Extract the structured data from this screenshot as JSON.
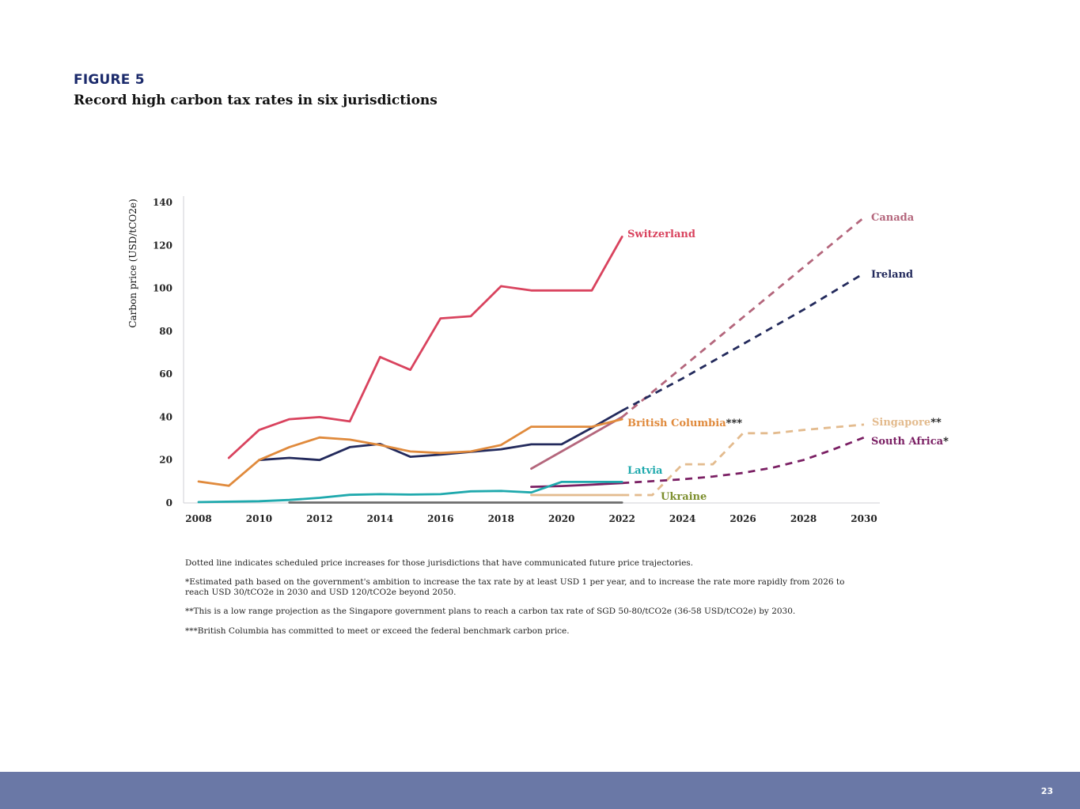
{
  "figure": {
    "label": "FIGURE 5",
    "title": "Record high carbon tax rates in six jurisdictions"
  },
  "chart_data": {
    "type": "line",
    "ylabel": "Carbon price (USD/tCO2e)",
    "xlabel": "",
    "xlim": [
      2008,
      2030
    ],
    "ylim": [
      0,
      140
    ],
    "x_ticks": [
      "2008",
      "2010",
      "2012",
      "2014",
      "2016",
      "2018",
      "2020",
      "2022",
      "2024",
      "2026",
      "2028",
      "2030"
    ],
    "y_ticks": [
      "0",
      "20",
      "40",
      "60",
      "80",
      "100",
      "120",
      "140"
    ],
    "grid": false,
    "series": [
      {
        "name": "Switzerland",
        "color": "#d9435e",
        "label_main": "Switzerland",
        "label_suffix": "",
        "solid": [
          [
            2009,
            21
          ],
          [
            2010,
            34
          ],
          [
            2011,
            39
          ],
          [
            2012,
            40
          ],
          [
            2013,
            38
          ],
          [
            2014,
            68
          ],
          [
            2015,
            62
          ],
          [
            2016,
            86
          ],
          [
            2017,
            87
          ],
          [
            2018,
            101
          ],
          [
            2019,
            99
          ],
          [
            2020,
            99
          ],
          [
            2021,
            99
          ],
          [
            2022,
            124
          ]
        ],
        "dashed": []
      },
      {
        "name": "Canada",
        "color": "#b4667c",
        "label_main": "Canada",
        "label_suffix": "",
        "solid": [
          [
            2019,
            16
          ],
          [
            2022,
            40
          ]
        ],
        "dashed": [
          [
            2022,
            40
          ],
          [
            2030,
            133
          ]
        ]
      },
      {
        "name": "Ireland",
        "color": "#232a5c",
        "label_main": "Ireland",
        "label_suffix": "",
        "solid": [
          [
            2010,
            20
          ],
          [
            2011,
            21
          ],
          [
            2012,
            20
          ],
          [
            2013,
            26
          ],
          [
            2014,
            27.5
          ],
          [
            2015,
            21.5
          ],
          [
            2016,
            22.5
          ],
          [
            2017,
            23.8
          ],
          [
            2018,
            25
          ],
          [
            2019,
            27.3
          ],
          [
            2020,
            27.3
          ],
          [
            2021,
            35
          ],
          [
            2022,
            43
          ]
        ],
        "dashed": [
          [
            2022,
            43
          ],
          [
            2024,
            58
          ],
          [
            2026,
            74
          ],
          [
            2028,
            90
          ],
          [
            2030,
            107
          ]
        ]
      },
      {
        "name": "British Columbia",
        "color": "#e08a3c",
        "label_main": "British Columbia",
        "label_suffix": "***",
        "solid": [
          [
            2008,
            10
          ],
          [
            2009,
            8
          ],
          [
            2010,
            20
          ],
          [
            2011,
            26
          ],
          [
            2012,
            30.5
          ],
          [
            2013,
            29.5
          ],
          [
            2014,
            27
          ],
          [
            2015,
            24
          ],
          [
            2016,
            23.3
          ],
          [
            2017,
            24
          ],
          [
            2018,
            27
          ],
          [
            2019,
            35.5
          ],
          [
            2020,
            35.5
          ],
          [
            2021,
            35.5
          ],
          [
            2022,
            39
          ]
        ],
        "dashed": []
      },
      {
        "name": "Singapore",
        "color": "#e3bb8e",
        "label_main": "Singapore",
        "label_suffix": "**",
        "solid": [
          [
            2019,
            3.7
          ],
          [
            2022,
            3.7
          ]
        ],
        "dashed": [
          [
            2022,
            3.7
          ],
          [
            2023,
            3.7
          ],
          [
            2024,
            18
          ],
          [
            2025,
            18
          ],
          [
            2026,
            32.5
          ],
          [
            2027,
            32.5
          ],
          [
            2028,
            34
          ],
          [
            2030,
            36.5
          ]
        ]
      },
      {
        "name": "South Africa",
        "color": "#7b2064",
        "label_main": "South Africa",
        "label_suffix": "*",
        "solid": [
          [
            2019,
            7.5
          ],
          [
            2020,
            7.9
          ],
          [
            2021,
            8.5
          ],
          [
            2022,
            9.3
          ]
        ],
        "dashed": [
          [
            2022,
            9.3
          ],
          [
            2024,
            11
          ],
          [
            2025,
            12.3
          ],
          [
            2026,
            14
          ],
          [
            2027,
            16.5
          ],
          [
            2028,
            20
          ],
          [
            2029,
            25
          ],
          [
            2030,
            30.5
          ]
        ]
      },
      {
        "name": "Latvia",
        "color": "#1fa9ad",
        "label_main": "Latvia",
        "label_suffix": "",
        "solid": [
          [
            2008,
            0.4
          ],
          [
            2010,
            0.8
          ],
          [
            2011,
            1.4
          ],
          [
            2012,
            2.4
          ],
          [
            2013,
            3.8
          ],
          [
            2014,
            4.1
          ],
          [
            2015,
            3.9
          ],
          [
            2016,
            4.1
          ],
          [
            2017,
            5.4
          ],
          [
            2018,
            5.6
          ],
          [
            2019,
            4.9
          ],
          [
            2020,
            9.8
          ],
          [
            2022,
            9.8
          ]
        ],
        "dashed": []
      },
      {
        "name": "Ukraine",
        "color": "#6c6c6c",
        "label_main": "Ukraine",
        "label_suffix": "",
        "label_color": "#7d8f2e",
        "solid": [
          [
            2011,
            0.2
          ],
          [
            2019,
            0.2
          ],
          [
            2022,
            0.2
          ]
        ],
        "dashed": []
      }
    ]
  },
  "notes": [
    "Dotted line indicates scheduled price increases for those jurisdictions that have communicated future price trajectories.",
    "*Estimated path based on the government's ambition to increase the tax rate by at least USD 1 per year, and to increase the rate more rapidly from 2026 to reach USD 30/tCO2e in 2030 and USD 120/tCO2e beyond 2050.",
    "**This is a low range projection as the Singapore government plans to reach a carbon tax rate of SGD 50-80/tCO2e (36-58 USD/tCO2e) by 2030.",
    "***British Columbia has committed to meet or exceed the federal benchmark carbon price."
  ],
  "footer": {
    "page_number": "23",
    "bar_color": "#6a78a6"
  }
}
